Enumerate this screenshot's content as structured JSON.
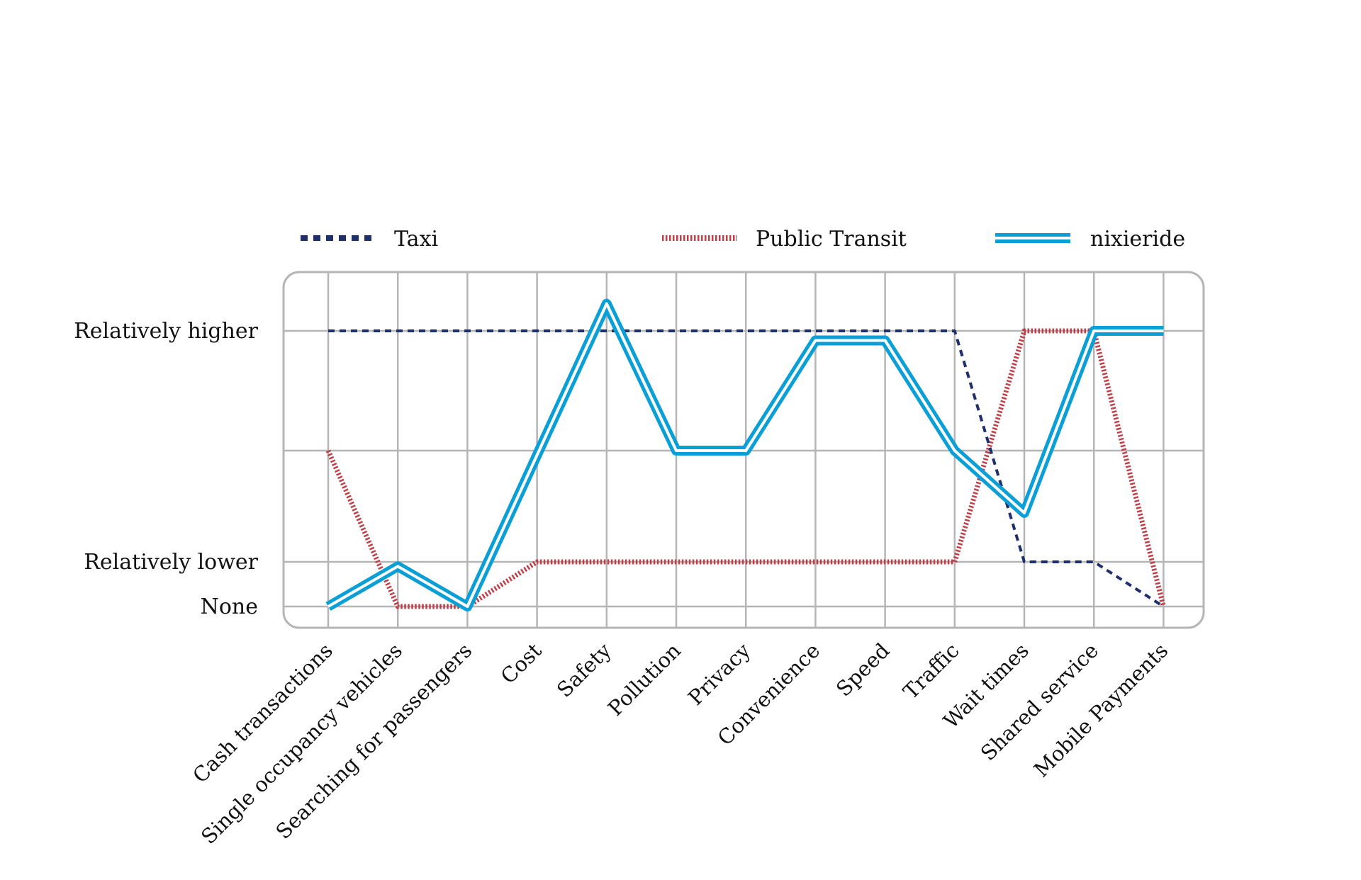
{
  "chart_data": {
    "type": "line",
    "title": "",
    "xlabel": "",
    "ylabel": "",
    "categories": [
      "Cash transactions",
      "Single occupancy vehicles",
      "Searching for passengers",
      "Cost",
      "Safety",
      "Pollution",
      "Privacy",
      "Convenience",
      "Speed",
      "Traffic",
      "Wait times",
      "Shared service",
      "Mobile Payments"
    ],
    "y_ticks": [
      {
        "value": 0,
        "label": "None"
      },
      {
        "value": 1,
        "label": "Relatively lower"
      },
      {
        "value": 3.5,
        "label": ""
      },
      {
        "value": 6,
        "label": "Relatively higher"
      }
    ],
    "ylim": [
      -0.5,
      7.3
    ],
    "series": [
      {
        "name": "Taxi",
        "color": "#1f2f6b",
        "style": "dotted",
        "values": [
          6,
          6,
          6,
          6,
          6,
          6,
          6,
          6,
          6,
          6,
          1,
          1,
          0
        ]
      },
      {
        "name": "Public Transit",
        "color": "#c0404a",
        "style": "hatched",
        "values": [
          3.5,
          0,
          0,
          1,
          1,
          1,
          1,
          1,
          1,
          1,
          6,
          6,
          0
        ]
      },
      {
        "name": "nixieride",
        "color": "#0a9fd6",
        "style": "double",
        "values": [
          0,
          0.9,
          0,
          3.4,
          6.6,
          3.5,
          3.5,
          5.8,
          5.8,
          3.5,
          2.1,
          6,
          6
        ]
      }
    ],
    "grid": true,
    "legend_position": "top"
  }
}
